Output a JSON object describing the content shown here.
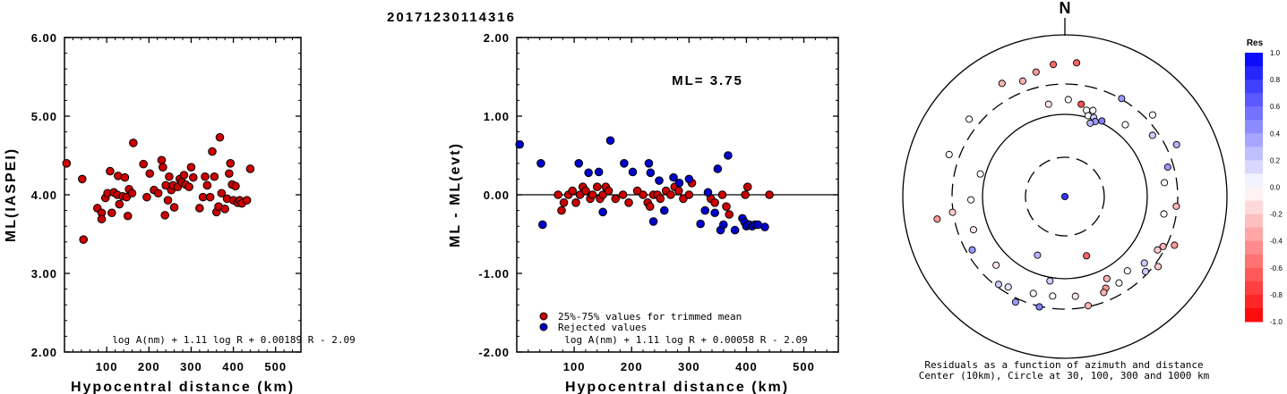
{
  "title": "20171230114316",
  "colors": {
    "accepted": "#cc0000",
    "rejected": "#0000cc"
  },
  "chart_data": [
    {
      "type": "scatter",
      "xlabel": "Hypocentral distance (km)",
      "ylabel": "ML(IASPEI)",
      "xlim": [
        0,
        560
      ],
      "ylim": [
        2.0,
        6.0
      ],
      "xticks": [
        "100",
        "200",
        "300",
        "400",
        "500"
      ],
      "yticks": [
        "2.00",
        "3.00",
        "4.00",
        "5.00",
        "6.00"
      ],
      "formula": "log A(nm) + 1.11 log R + 0.00189 R - 2.09",
      "series": [
        {
          "points": [
            [
              5,
              4.4
            ],
            [
              42,
              4.2
            ],
            [
              45,
              3.43
            ],
            [
              78,
              3.83
            ],
            [
              88,
              3.77
            ],
            [
              88,
              3.69
            ],
            [
              97,
              3.96
            ],
            [
              102,
              4.02
            ],
            [
              108,
              4.3
            ],
            [
              112,
              3.77
            ],
            [
              117,
              4.03
            ],
            [
              125,
              4.0
            ],
            [
              127,
              4.24
            ],
            [
              130,
              3.88
            ],
            [
              138,
              3.98
            ],
            [
              143,
              4.22
            ],
            [
              147,
              3.97
            ],
            [
              150,
              3.73
            ],
            [
              153,
              4.07
            ],
            [
              160,
              4.02
            ],
            [
              163,
              4.66
            ],
            [
              187,
              4.39
            ],
            [
              195,
              3.97
            ],
            [
              202,
              4.27
            ],
            [
              212,
              4.06
            ],
            [
              222,
              4.02
            ],
            [
              230,
              4.44
            ],
            [
              233,
              4.35
            ],
            [
              238,
              3.74
            ],
            [
              240,
              4.12
            ],
            [
              245,
              3.93
            ],
            [
              248,
              4.23
            ],
            [
              253,
              4.06
            ],
            [
              257,
              4.12
            ],
            [
              260,
              3.84
            ],
            [
              268,
              4.1
            ],
            [
              273,
              4.2
            ],
            [
              278,
              4.16
            ],
            [
              283,
              4.25
            ],
            [
              287,
              4.13
            ],
            [
              295,
              4.1
            ],
            [
              300,
              4.35
            ],
            [
              305,
              4.22
            ],
            [
              320,
              3.83
            ],
            [
              328,
              3.97
            ],
            [
              333,
              4.23
            ],
            [
              338,
              4.12
            ],
            [
              345,
              3.97
            ],
            [
              350,
              4.55
            ],
            [
              355,
              4.23
            ],
            [
              360,
              3.78
            ],
            [
              365,
              3.85
            ],
            [
              368,
              4.73
            ],
            [
              372,
              4.02
            ],
            [
              380,
              3.82
            ],
            [
              385,
              3.95
            ],
            [
              390,
              4.27
            ],
            [
              393,
              4.4
            ],
            [
              397,
              4.13
            ],
            [
              400,
              3.93
            ],
            [
              405,
              4.11
            ],
            [
              410,
              3.9
            ],
            [
              415,
              3.93
            ],
            [
              420,
              3.89
            ],
            [
              432,
              3.93
            ],
            [
              440,
              4.33
            ]
          ]
        }
      ]
    },
    {
      "type": "scatter",
      "xlabel": "Hypocentral distance (km)",
      "ylabel": "ML - ML(evt)",
      "xlim": [
        0,
        560
      ],
      "ylim": [
        -2.0,
        2.0
      ],
      "xticks": [
        "100",
        "200",
        "300",
        "400",
        "500"
      ],
      "yticks": [
        "-2.00",
        "-1.00",
        "0.00",
        "1.00",
        "2.00"
      ],
      "annotation": "ML= 3.75",
      "formula": "log A(nm) + 1.11 log R + 0.00058 R - 2.09",
      "legend": {
        "accepted": "25%-75% values for trimmed mean",
        "rejected": "Rejected values"
      },
      "series": [
        {
          "name": "25%-75% values for trimmed mean",
          "points": [
            [
              72,
              0.0
            ],
            [
              78,
              -0.2
            ],
            [
              82,
              -0.1
            ],
            [
              90,
              0.0
            ],
            [
              97,
              0.05
            ],
            [
              103,
              -0.1
            ],
            [
              110,
              0.0
            ],
            [
              115,
              0.1
            ],
            [
              120,
              0.05
            ],
            [
              128,
              -0.05
            ],
            [
              132,
              0.0
            ],
            [
              140,
              0.1
            ],
            [
              145,
              -0.05
            ],
            [
              150,
              0.0
            ],
            [
              155,
              0.1
            ],
            [
              160,
              0.05
            ],
            [
              172,
              -0.05
            ],
            [
              185,
              0.0
            ],
            [
              195,
              -0.1
            ],
            [
              210,
              0.05
            ],
            [
              220,
              0.0
            ],
            [
              228,
              -0.1
            ],
            [
              232,
              -0.15
            ],
            [
              238,
              0.0
            ],
            [
              245,
              0.0
            ],
            [
              250,
              -0.05
            ],
            [
              260,
              0.05
            ],
            [
              268,
              0.0
            ],
            [
              275,
              0.1
            ],
            [
              282,
              0.05
            ],
            [
              290,
              -0.05
            ],
            [
              300,
              0.0
            ],
            [
              305,
              0.15
            ],
            [
              338,
              -0.05
            ],
            [
              345,
              -0.1
            ],
            [
              358,
              0.0
            ],
            [
              365,
              -0.15
            ],
            [
              370,
              -0.25
            ],
            [
              398,
              0.0
            ],
            [
              402,
              0.1
            ],
            [
              440,
              0.0
            ]
          ]
        },
        {
          "name": "Rejected values",
          "points": [
            [
              5,
              0.64
            ],
            [
              42,
              0.4
            ],
            [
              45,
              -0.38
            ],
            [
              108,
              0.4
            ],
            [
              125,
              0.28
            ],
            [
              143,
              0.29
            ],
            [
              150,
              -0.22
            ],
            [
              163,
              0.69
            ],
            [
              187,
              0.4
            ],
            [
              202,
              0.29
            ],
            [
              230,
              0.4
            ],
            [
              233,
              0.28
            ],
            [
              238,
              -0.34
            ],
            [
              248,
              0.18
            ],
            [
              257,
              -0.2
            ],
            [
              273,
              0.22
            ],
            [
              283,
              0.15
            ],
            [
              300,
              0.2
            ],
            [
              320,
              -0.37
            ],
            [
              328,
              -0.2
            ],
            [
              333,
              0.03
            ],
            [
              345,
              -0.23
            ],
            [
              350,
              0.33
            ],
            [
              355,
              -0.45
            ],
            [
              360,
              -0.38
            ],
            [
              368,
              0.5
            ],
            [
              380,
              -0.45
            ],
            [
              393,
              -0.3
            ],
            [
              397,
              -0.35
            ],
            [
              400,
              -0.4
            ],
            [
              405,
              -0.38
            ],
            [
              410,
              -0.4
            ],
            [
              415,
              -0.38
            ],
            [
              420,
              -0.38
            ],
            [
              432,
              -0.41
            ]
          ]
        }
      ]
    },
    {
      "type": "scatter",
      "subtype": "polar-residuals",
      "north_label": "N",
      "caption_line1": "Residuals as a function of azimuth and distance",
      "caption_line2": "Center (10km), Circle at 30, 100, 300 and 1000 km",
      "colorbar": {
        "title": "Res",
        "ticks": [
          "1.0",
          "0.8",
          "0.6",
          "0.4",
          "0.2",
          "0.0",
          "-0.2",
          "-0.4",
          "-0.6",
          "-0.8",
          "-1.0"
        ],
        "max_color": "#0000ff",
        "mid_color": "#ffffff",
        "min_color": "#ff0000"
      },
      "points_azimuth_radius_residual": [
        [
          0,
          0.0,
          0.8
        ],
        [
          350,
          0.58,
          -0.1
        ],
        [
          10,
          0.58,
          -0.7
        ],
        [
          355,
          0.82,
          -0.6
        ],
        [
          5,
          0.83,
          -0.6
        ],
        [
          347,
          0.79,
          -0.4
        ],
        [
          340,
          0.76,
          -0.3
        ],
        [
          2,
          0.6,
          0.0
        ],
        [
          14,
          0.55,
          0.0
        ],
        [
          16,
          0.52,
          0.0
        ],
        [
          18,
          0.56,
          0.0
        ],
        [
          20,
          0.52,
          0.2
        ],
        [
          22,
          0.5,
          0.4
        ],
        [
          26,
          0.52,
          0.5
        ],
        [
          19,
          0.48,
          0.3
        ],
        [
          30,
          0.7,
          0.4
        ],
        [
          40,
          0.58,
          0.0
        ],
        [
          47,
          0.74,
          0.0
        ],
        [
          55,
          0.66,
          0.2
        ],
        [
          65,
          0.76,
          0.3
        ],
        [
          74,
          0.66,
          0.4
        ],
        [
          82,
          0.62,
          0.0
        ],
        [
          95,
          0.69,
          -0.3
        ],
        [
          100,
          0.62,
          0.0
        ],
        [
          114,
          0.74,
          -0.4
        ],
        [
          117,
          0.68,
          -0.3
        ],
        [
          120,
          0.66,
          -0.2
        ],
        [
          127,
          0.72,
          -0.2
        ],
        [
          130,
          0.64,
          0.2
        ],
        [
          133,
          0.68,
          0.2
        ],
        [
          140,
          0.6,
          0.0
        ],
        [
          148,
          0.63,
          0.0
        ],
        [
          153,
          0.57,
          -0.3
        ],
        [
          156,
          0.62,
          -0.4
        ],
        [
          158,
          0.64,
          -0.3
        ],
        [
          168,
          0.69,
          -0.3
        ],
        [
          174,
          0.62,
          -0.1
        ],
        [
          187,
          0.62,
          0.0
        ],
        [
          193,
          0.7,
          0.5
        ],
        [
          198,
          0.63,
          0.0
        ],
        [
          205,
          0.72,
          0.4
        ],
        [
          212,
          0.66,
          0.1
        ],
        [
          217,
          0.68,
          0.2
        ],
        [
          225,
          0.6,
          -0.1
        ],
        [
          240,
          0.66,
          0.4
        ],
        [
          250,
          0.6,
          -0.1
        ],
        [
          260,
          0.8,
          -0.4
        ],
        [
          262,
          0.7,
          -0.2
        ],
        [
          268,
          0.58,
          0.0
        ],
        [
          285,
          0.54,
          0.0
        ],
        [
          290,
          0.76,
          0.0
        ],
        [
          309,
          0.76,
          0.0
        ],
        [
          331,
          0.8,
          -0.3
        ],
        [
          160,
          0.39,
          -0.6
        ],
        [
          205,
          0.4,
          0.3
        ],
        [
          190,
          0.53,
          0.2
        ]
      ]
    }
  ]
}
